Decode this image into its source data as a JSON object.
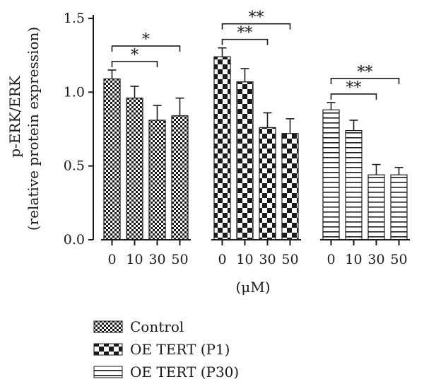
{
  "chart_data": {
    "type": "bar",
    "ylabel_line1": "p-ERK/ERK",
    "ylabel_line2": "(relative protein expression)",
    "xlabel": "(μM)",
    "ylim": [
      0,
      1.5
    ],
    "yticks": [
      "0.0",
      "0.5",
      "1.0",
      "1.5"
    ],
    "categories": [
      "0",
      "10",
      "30",
      "50"
    ],
    "series": [
      {
        "name": "Control",
        "pattern": "small-check",
        "values": [
          1.09,
          0.96,
          0.81,
          0.84
        ],
        "errors": [
          0.06,
          0.08,
          0.1,
          0.12
        ]
      },
      {
        "name": "OE TERT (P1)",
        "pattern": "large-check",
        "values": [
          1.24,
          1.07,
          0.76,
          0.72
        ],
        "errors": [
          0.06,
          0.09,
          0.1,
          0.1
        ]
      },
      {
        "name": "OE TERT (P30)",
        "pattern": "horizontal-lines",
        "values": [
          0.88,
          0.74,
          0.44,
          0.44
        ],
        "errors": [
          0.05,
          0.07,
          0.07,
          0.05
        ]
      }
    ],
    "significance": [
      {
        "group": 0,
        "from": 0,
        "to": 3,
        "label": "*"
      },
      {
        "group": 0,
        "from": 0,
        "to": 2,
        "label": "*"
      },
      {
        "group": 1,
        "from": 0,
        "to": 3,
        "label": "**"
      },
      {
        "group": 1,
        "from": 0,
        "to": 2,
        "label": "**"
      },
      {
        "group": 2,
        "from": 0,
        "to": 3,
        "label": "**"
      },
      {
        "group": 2,
        "from": 0,
        "to": 2,
        "label": "**"
      }
    ],
    "colors": {
      "ink": "#1a1a1a",
      "background": "#ffffff"
    }
  }
}
